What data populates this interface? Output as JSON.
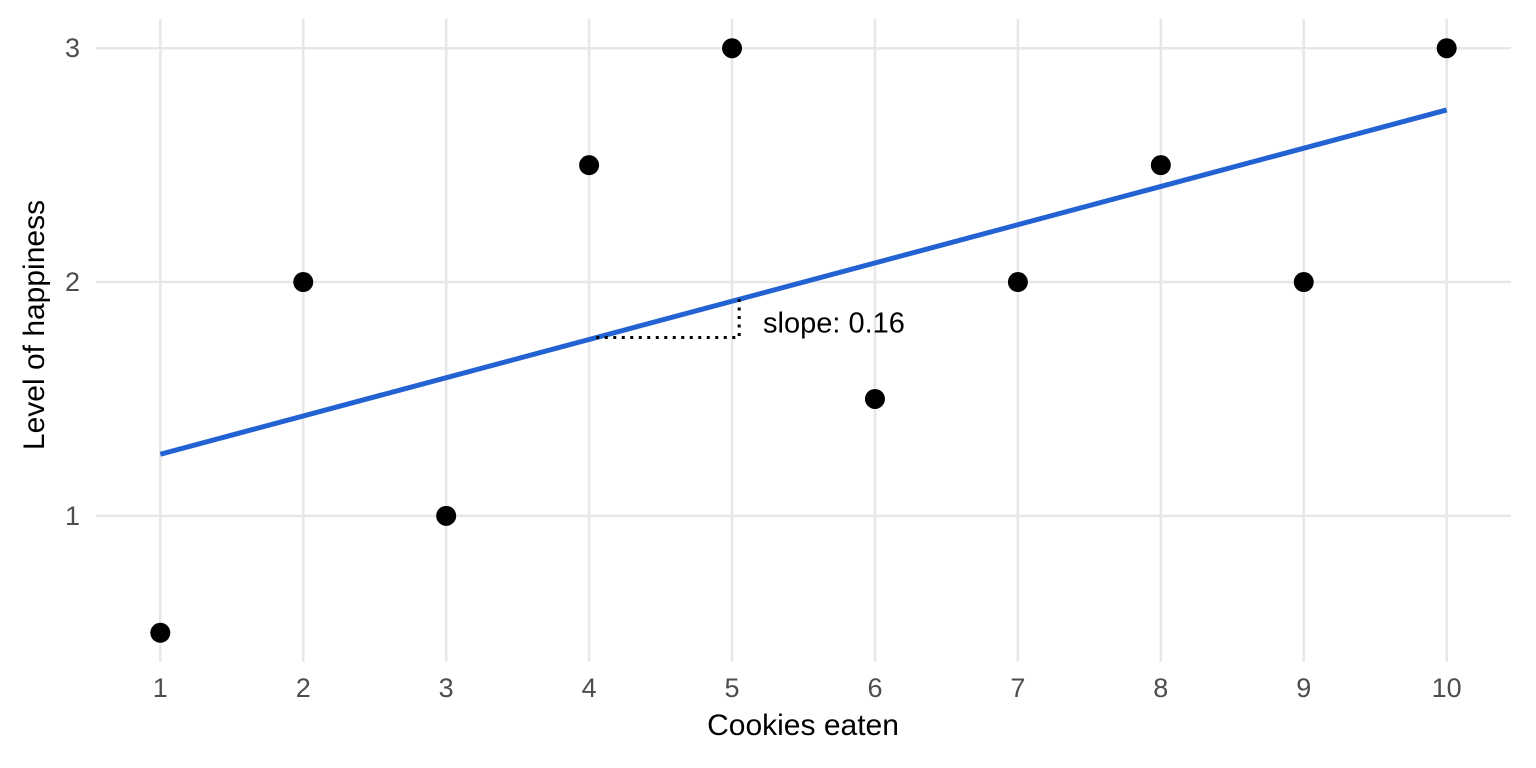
{
  "chart_data": {
    "type": "scatter",
    "title": "",
    "xlabel": "Cookies eaten",
    "ylabel": "Level of happiness",
    "x": [
      1,
      2,
      3,
      4,
      5,
      6,
      7,
      8,
      9,
      10
    ],
    "y": [
      0.5,
      2,
      1,
      2.5,
      3,
      1.5,
      2,
      2.5,
      2,
      3
    ],
    "xticks": [
      "1",
      "2",
      "3",
      "4",
      "5",
      "6",
      "7",
      "8",
      "9",
      "10"
    ],
    "xtick_values": [
      1,
      2,
      3,
      4,
      5,
      6,
      7,
      8,
      9,
      10
    ],
    "yticks": [
      "1",
      "2",
      "3"
    ],
    "ytick_values": [
      1,
      2,
      3
    ],
    "xlim": [
      0.55,
      10.45
    ],
    "ylim": [
      0.375,
      3.125
    ],
    "grid": "major-only",
    "legend_position": "none",
    "regression_line": {
      "slope": 0.1636,
      "intercept": 1.1,
      "x_start": 1,
      "x_end": 10
    },
    "annotation": {
      "text": "slope: 0.16",
      "style": "dotted-right-triangle",
      "run_from_x": 4.05,
      "run_to_x": 5.05
    },
    "colors": {
      "background": "#ffffff",
      "grid": "#e7e7e7",
      "point": "#000000",
      "regression_line": "#2262d2",
      "tick_label": "#4d4d4d",
      "axis_title": "#000000",
      "annotation": "#000000"
    }
  }
}
